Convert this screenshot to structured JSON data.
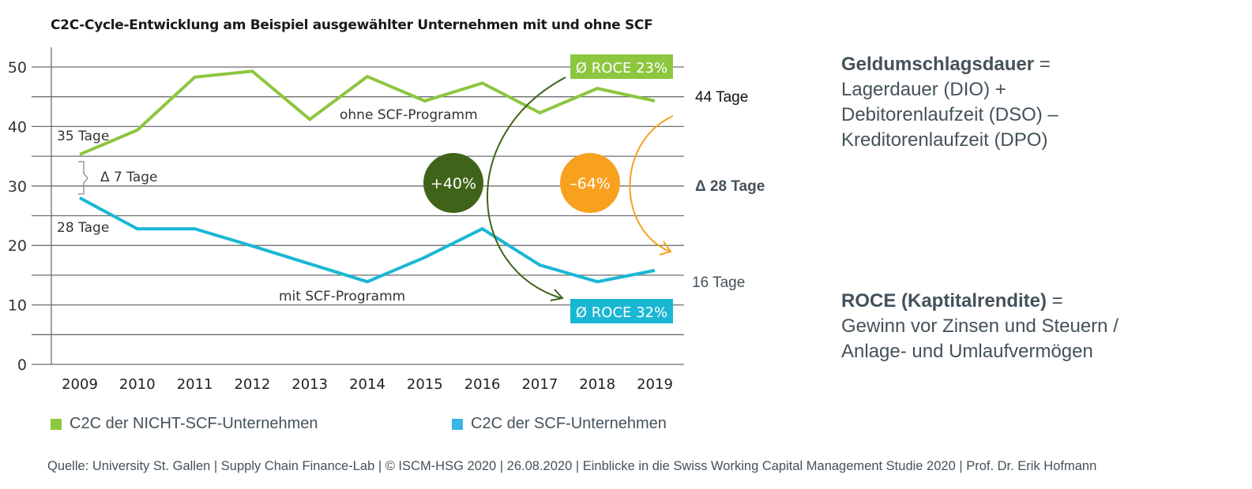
{
  "chart_data": {
    "type": "line",
    "title": "C2C-Cycle-Entwicklung am Beispiel ausgewählter Unternehmen mit und ohne SCF",
    "xlabel": "",
    "ylabel": "",
    "ylim": [
      0,
      50
    ],
    "yticks": [
      0,
      10,
      20,
      30,
      40,
      50
    ],
    "ytick_labels": [
      "0",
      "10",
      "20",
      "30",
      "40",
      "50"
    ],
    "minor_yticks": [
      5,
      15,
      25,
      35,
      45
    ],
    "grid": true,
    "categories": [
      "2009",
      "2010",
      "2011",
      "2012",
      "2013",
      "2014",
      "2015",
      "2016",
      "2017",
      "2018",
      "2019"
    ],
    "series": [
      {
        "name": "C2C der NICHT-SCF-Unternehmen",
        "color": "#8dc63f",
        "values": [
          35.3,
          39.4,
          48.3,
          49.3,
          41.2,
          48.4,
          44.3,
          47.3,
          42.3,
          46.4,
          44.3
        ]
      },
      {
        "name": "C2C der SCF-Unternehmen",
        "color": "#1ab7d4",
        "values": [
          28,
          22.8,
          22.8,
          19.9,
          16.9,
          13.9,
          18,
          22.8,
          16.7,
          13.9,
          15.8
        ]
      }
    ],
    "legend_position": "bottom",
    "annotations": {
      "start_green": "35 Tage",
      "start_blue": "28 Tage",
      "delta_start": "Δ 7 Tage",
      "end_green": "44 Tage",
      "end_blue": "16 Tage",
      "delta_end": "Δ 28 Tage",
      "series_label_green": "ohne SCF-Programm",
      "series_label_blue": "mit SCF-Programm",
      "roce_green": "Ø ROCE 23%",
      "roce_blue": "Ø ROCE 32%",
      "circle_green": "+40%",
      "circle_orange": "–64%"
    },
    "colors": {
      "green": "#8dc63f",
      "blue": "#1ab7d4",
      "dark_green": "#3f6419",
      "orange": "#f7a11f",
      "grid": "#6e6e6e",
      "text": "#44525a"
    }
  },
  "definitions": {
    "c2c_term": "Geldumschlagsdauer",
    "c2c_eq": " =",
    "c2c_lines": [
      "Lagerdauer (DIO)  +",
      "Debitorenlaufzeit (DSO) –",
      "Kreditorenlaufzeit (DPO)"
    ],
    "roce_term": "ROCE (Kaptitalrendite)",
    "roce_eq": " =",
    "roce_lines": [
      "Gewinn vor Zinsen und Steuern /",
      "Anlage- und Umlaufvermögen"
    ]
  },
  "legend": {
    "green_label": "C2C der NICHT-SCF-Unternehmen",
    "blue_label": "C2C der SCF-Unternehmen"
  },
  "source": "Quelle: University St. Gallen | Supply Chain Finance-Lab | © ISCM-HSG 2020 | 26.08.2020 | Einblicke in die Swiss Working Capital Management Studie 2020 | Prof. Dr. Erik Hofmann"
}
